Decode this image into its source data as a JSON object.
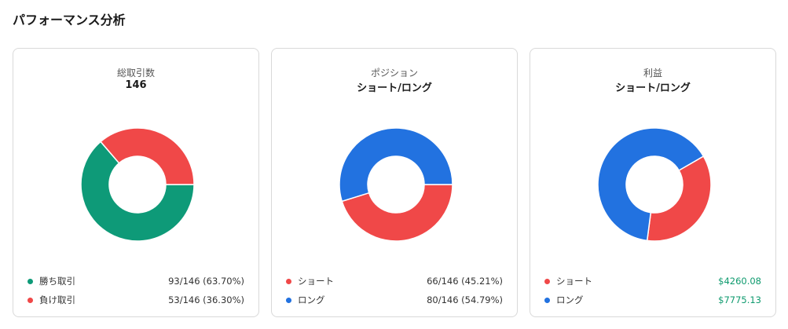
{
  "page": {
    "title": "パフォーマンス分析"
  },
  "chart_data": [
    {
      "type": "pie",
      "subtitle": "総取引数",
      "title": "146",
      "donut": true,
      "series": [
        {
          "name": "勝ち取引",
          "value": 93,
          "display": "93/146 (63.70%)",
          "color": "#0e9a78"
        },
        {
          "name": "負け取引",
          "value": 53,
          "display": "53/146 (36.30%)",
          "color": "#f04848"
        }
      ]
    },
    {
      "type": "pie",
      "subtitle": "ポジション",
      "title": "ショート/ロング",
      "donut": true,
      "series": [
        {
          "name": "ショート",
          "value": 66,
          "display": "66/146 (45.21%)",
          "color": "#f04848"
        },
        {
          "name": "ロング",
          "value": 80,
          "display": "80/146 (54.79%)",
          "color": "#2272e0"
        }
      ]
    },
    {
      "type": "pie",
      "subtitle": "利益",
      "title": "ショート/ロング",
      "donut": true,
      "series": [
        {
          "name": "ショート",
          "value": 4260.08,
          "display": "$4260.08",
          "color": "#f04848"
        },
        {
          "name": "ロング",
          "value": 7775.13,
          "display": "$7775.13",
          "color": "#2272e0"
        }
      ]
    }
  ]
}
